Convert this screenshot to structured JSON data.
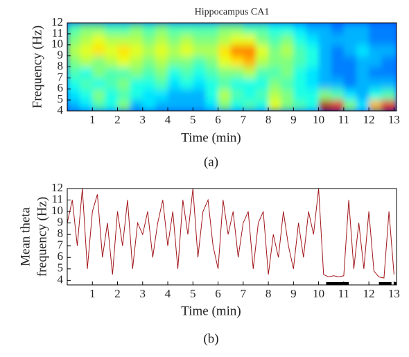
{
  "chart_data": [
    {
      "type": "heatmap",
      "title": "Hippocampus CA1",
      "xlabel": "Time (min)",
      "ylabel": "Frequency (Hz)",
      "caption": "(a)",
      "x_bins": [
        0,
        0.5,
        1,
        1.5,
        2,
        2.5,
        3,
        3.5,
        4,
        4.5,
        5,
        5.5,
        6,
        6.5,
        7,
        7.5,
        8,
        8.5,
        9,
        9.5,
        10,
        10.5,
        11,
        11.5,
        12,
        12.5,
        13.1
      ],
      "y_bins": [
        4,
        5,
        6,
        7,
        8,
        9,
        10,
        11,
        12
      ],
      "values": [
        [
          0.3,
          0.35,
          0.45,
          0.4,
          0.5,
          0.3,
          0.35,
          0.3,
          0.3,
          0.3,
          0.3,
          0.35,
          0.5,
          0.4,
          0.45,
          0.4,
          0.6,
          0.5,
          0.45,
          0.4,
          0.95,
          0.9,
          0.5,
          0.35,
          0.7,
          0.9
        ],
        [
          0.35,
          0.4,
          0.5,
          0.4,
          0.45,
          0.4,
          0.35,
          0.35,
          0.3,
          0.3,
          0.3,
          0.4,
          0.55,
          0.45,
          0.4,
          0.45,
          0.55,
          0.5,
          0.4,
          0.4,
          0.5,
          0.45,
          0.35,
          0.3,
          0.4,
          0.45
        ],
        [
          0.4,
          0.45,
          0.4,
          0.45,
          0.5,
          0.4,
          0.4,
          0.45,
          0.35,
          0.4,
          0.35,
          0.4,
          0.45,
          0.4,
          0.4,
          0.4,
          0.5,
          0.45,
          0.4,
          0.35,
          0.3,
          0.3,
          0.25,
          0.3,
          0.3,
          0.3
        ],
        [
          0.45,
          0.4,
          0.5,
          0.45,
          0.45,
          0.5,
          0.45,
          0.5,
          0.4,
          0.45,
          0.4,
          0.45,
          0.5,
          0.5,
          0.55,
          0.45,
          0.45,
          0.5,
          0.4,
          0.35,
          0.3,
          0.25,
          0.25,
          0.3,
          0.25,
          0.25
        ],
        [
          0.5,
          0.55,
          0.5,
          0.55,
          0.6,
          0.55,
          0.5,
          0.55,
          0.5,
          0.5,
          0.45,
          0.5,
          0.6,
          0.65,
          0.7,
          0.55,
          0.5,
          0.5,
          0.45,
          0.4,
          0.3,
          0.25,
          0.25,
          0.3,
          0.3,
          0.25
        ],
        [
          0.55,
          0.6,
          0.65,
          0.6,
          0.65,
          0.6,
          0.55,
          0.6,
          0.55,
          0.6,
          0.55,
          0.55,
          0.65,
          0.75,
          0.75,
          0.6,
          0.5,
          0.55,
          0.45,
          0.4,
          0.3,
          0.25,
          0.3,
          0.35,
          0.3,
          0.3
        ],
        [
          0.5,
          0.55,
          0.6,
          0.55,
          0.55,
          0.55,
          0.5,
          0.55,
          0.5,
          0.55,
          0.5,
          0.5,
          0.55,
          0.6,
          0.6,
          0.5,
          0.45,
          0.5,
          0.4,
          0.35,
          0.3,
          0.3,
          0.3,
          0.3,
          0.25,
          0.25
        ],
        [
          0.45,
          0.5,
          0.5,
          0.45,
          0.45,
          0.5,
          0.45,
          0.5,
          0.45,
          0.45,
          0.45,
          0.45,
          0.5,
          0.5,
          0.45,
          0.45,
          0.4,
          0.4,
          0.35,
          0.3,
          0.3,
          0.25,
          0.3,
          0.3,
          0.25,
          0.25
        ]
      ],
      "xlim": [
        0,
        13.1
      ],
      "ylim": [
        4,
        12
      ],
      "xticks": [
        1,
        2,
        3,
        4,
        5,
        6,
        7,
        8,
        9,
        10,
        11,
        12,
        13
      ],
      "yticks": [
        4,
        5,
        6,
        7,
        8,
        9,
        10,
        11,
        12
      ]
    },
    {
      "type": "line",
      "xlabel": "Time (min)",
      "ylabel": [
        "Mean theta",
        "frequency (Hz)"
      ],
      "caption": "(b)",
      "x": [
        0,
        0.2,
        0.4,
        0.6,
        0.8,
        1.0,
        1.2,
        1.4,
        1.6,
        1.8,
        2.0,
        2.2,
        2.4,
        2.6,
        2.8,
        3.0,
        3.2,
        3.4,
        3.6,
        3.8,
        4.0,
        4.2,
        4.4,
        4.6,
        4.8,
        5.0,
        5.2,
        5.4,
        5.6,
        5.8,
        6.0,
        6.2,
        6.4,
        6.6,
        6.8,
        7.0,
        7.2,
        7.4,
        7.6,
        7.8,
        8.0,
        8.2,
        8.4,
        8.6,
        8.8,
        9.0,
        9.2,
        9.4,
        9.6,
        9.8,
        10.0,
        10.2,
        10.4,
        10.6,
        10.8,
        11.0,
        11.2,
        11.4,
        11.6,
        11.8,
        12.0,
        12.2,
        12.4,
        12.6,
        12.8,
        13.0
      ],
      "values": [
        9,
        11,
        7,
        12,
        5,
        10,
        11.5,
        6,
        9,
        4.5,
        10,
        7,
        11,
        5,
        9,
        8,
        10,
        6,
        9,
        11,
        7,
        10,
        5,
        11,
        8,
        12,
        6,
        10,
        11,
        7,
        5,
        11,
        8,
        10,
        6,
        9,
        10,
        5,
        9,
        10,
        4.5,
        8,
        6,
        10,
        7,
        5,
        9,
        6,
        10,
        8,
        12,
        4.5,
        4.3,
        4.4,
        4.3,
        4.4,
        11,
        5,
        9,
        5,
        10,
        4.8,
        4.3,
        4.2,
        10,
        4.5
      ],
      "color": "#a0151a",
      "spans": [
        [
          10.3,
          11.2
        ],
        [
          12.4,
          12.9
        ],
        [
          13.0,
          13.1
        ]
      ],
      "xlim": [
        0,
        13.1
      ],
      "ylim": [
        3.6,
        12
      ],
      "xticks": [
        1,
        2,
        3,
        4,
        5,
        6,
        7,
        8,
        9,
        10,
        11,
        12,
        13
      ],
      "yticks": [
        4,
        5,
        6,
        7,
        8,
        9,
        10,
        11,
        12
      ]
    }
  ]
}
